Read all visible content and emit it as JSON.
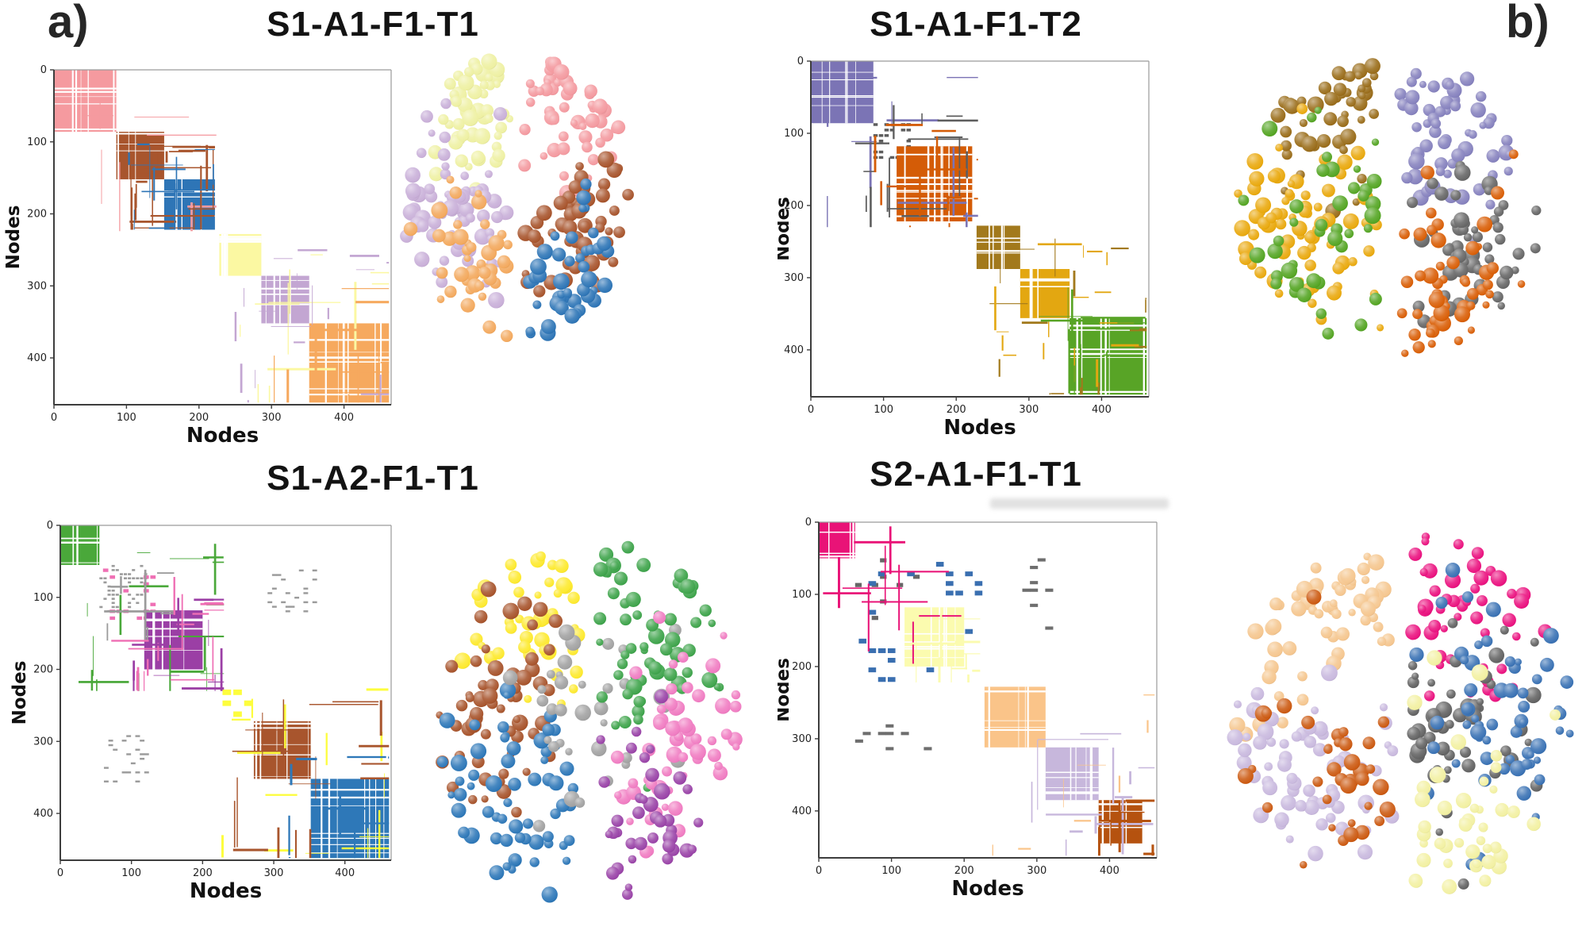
{
  "figure": {
    "labels": {
      "a": "a)",
      "b": "b)"
    }
  },
  "chart_data": [
    {
      "type": "heatmap",
      "title": "S1-A1-F1-T1",
      "matrix": {
        "type": "heatmap",
        "xlabel": "Nodes",
        "ylabel": "Nodes",
        "x_ticks": [
          0,
          100,
          200,
          300,
          400
        ],
        "y_ticks": [
          0,
          100,
          200,
          300,
          400
        ],
        "n_nodes": 465,
        "communities": [
          {
            "name": "pink",
            "color": "#f59a9f",
            "range": [
              0,
              86
            ],
            "style": "solid",
            "spread": [
              0,
              224
            ],
            "spread_n": 4
          },
          {
            "name": "brown",
            "color": "#a8552d",
            "range": [
              86,
              152
            ],
            "style": "solid",
            "spread": [
              55,
              222
            ],
            "spread_n": 12
          },
          {
            "name": "blue",
            "color": "#2e75b6",
            "range": [
              152,
              222
            ],
            "style": "solid",
            "spread": [
              100,
              222
            ],
            "spread_n": 8
          },
          {
            "name": "yellow",
            "color": "#fbf8a2",
            "range": [
              228,
              286
            ],
            "style": "solid",
            "spread": [
              228,
              462
            ],
            "spread_n": 8
          },
          {
            "name": "purple",
            "color": "#c3a6d2",
            "range": [
              286,
              352
            ],
            "style": "solid",
            "spread": [
              235,
              462
            ],
            "spread_n": 9
          },
          {
            "name": "orange",
            "color": "#f6a95e",
            "range": [
              352,
              462
            ],
            "style": "solid",
            "spread": [
              300,
              462
            ],
            "spread_n": 6
          }
        ],
        "remote_blocks": []
      },
      "brain": {
        "type": "scatter",
        "clusters": [
          {
            "name": "pale-yellow",
            "color": "#eef0a2",
            "hemi": "L",
            "center": [
              -0.4,
              -0.6
            ],
            "spread": 0.25,
            "count": 50
          },
          {
            "name": "pink",
            "color": "#f49aa0",
            "hemi": "R",
            "center": [
              0.4,
              -0.58
            ],
            "spread": 0.26,
            "count": 52
          },
          {
            "name": "lavender",
            "color": "#c9afd8",
            "hemi": "L",
            "center": [
              -0.52,
              0.1
            ],
            "spread": 0.3,
            "count": 68
          },
          {
            "name": "orange",
            "color": "#f3a95e",
            "hemi": "L",
            "center": [
              -0.22,
              0.42
            ],
            "spread": 0.26,
            "count": 40
          },
          {
            "name": "brown",
            "color": "#a8552d",
            "hemi": "R",
            "center": [
              0.45,
              0.18
            ],
            "spread": 0.27,
            "count": 55
          },
          {
            "name": "blue",
            "color": "#2e75b6",
            "hemi": "R",
            "center": [
              0.38,
              0.62
            ],
            "spread": 0.27,
            "count": 50
          }
        ]
      }
    },
    {
      "type": "heatmap",
      "title": "S1-A1-F1-T2",
      "matrix": {
        "type": "heatmap",
        "xlabel": "Nodes",
        "ylabel": "Nodes",
        "x_ticks": [
          0,
          100,
          200,
          300,
          400
        ],
        "y_ticks": [
          0,
          100,
          200,
          300,
          400
        ],
        "n_nodes": 465,
        "communities": [
          {
            "name": "slate-purple",
            "color": "#7b74b5",
            "range": [
              0,
              86
            ],
            "style": "solid",
            "spread": [
              0,
              230
            ],
            "spread_n": 6
          },
          {
            "name": "dark-gray",
            "color": "#5d5d5d",
            "range": [
              86,
              135
            ],
            "style": "sparse",
            "density": 0.35,
            "cell": 4,
            "spread": [
              60,
              230
            ],
            "spread_n": 8
          },
          {
            "name": "dark-orange",
            "color": "#d45c07",
            "range": [
              118,
              222
            ],
            "style": "solid",
            "spread": [
              86,
              230
            ],
            "spread_n": 7
          },
          {
            "name": "dark-gold",
            "color": "#a2791c",
            "range": [
              228,
              288
            ],
            "style": "solid",
            "spread": [
              228,
              462
            ],
            "spread_n": 9
          },
          {
            "name": "amber",
            "color": "#e3a711",
            "range": [
              288,
              356
            ],
            "style": "solid",
            "spread": [
              240,
              462
            ],
            "spread_n": 8
          },
          {
            "name": "green",
            "color": "#58a426",
            "range": [
              356,
              462
            ],
            "style": "solid",
            "spread": [
              310,
              462
            ],
            "spread_n": 6
          }
        ],
        "remote_blocks": []
      },
      "brain": {
        "type": "scatter",
        "clusters": [
          {
            "name": "dark-gold",
            "color": "#9a6d1b",
            "hemi": "L",
            "center": [
              -0.35,
              -0.62
            ],
            "spread": 0.26,
            "count": 48
          },
          {
            "name": "amber",
            "color": "#e9a90e",
            "hemi": "L",
            "center": [
              -0.55,
              0.08
            ],
            "spread": 0.3,
            "count": 75
          },
          {
            "name": "green",
            "color": "#55a524",
            "hemi": "L",
            "center": [
              -0.28,
              0.18
            ],
            "spread": 0.33,
            "count": 42
          },
          {
            "name": "slate-purple",
            "color": "#8682be",
            "hemi": "R",
            "center": [
              0.35,
              -0.45
            ],
            "spread": 0.3,
            "count": 62
          },
          {
            "name": "gray",
            "color": "#676767",
            "hemi": "R",
            "center": [
              0.55,
              0.28
            ],
            "spread": 0.28,
            "count": 52
          },
          {
            "name": "dark-orange",
            "color": "#d95f07",
            "hemi": "R",
            "center": [
              0.28,
              0.55
            ],
            "spread": 0.3,
            "count": 52
          }
        ]
      }
    },
    {
      "type": "heatmap",
      "title": "S1-A2-F1-T1",
      "matrix": {
        "type": "heatmap",
        "xlabel": "Nodes",
        "ylabel": "Nodes",
        "x_ticks": [
          0,
          100,
          200,
          300,
          400
        ],
        "y_ticks": [
          0,
          100,
          200,
          300,
          400
        ],
        "n_nodes": 465,
        "communities": [
          {
            "name": "green",
            "color": "#4aa83a",
            "range": [
              0,
              55
            ],
            "style": "solid",
            "spread": [
              0,
              230
            ],
            "spread_n": 10
          },
          {
            "name": "light-gray",
            "color": "#9b9b9b",
            "range": [
              55,
              118
            ],
            "style": "sparse",
            "density": 0.22,
            "cell": 3,
            "spread": [
              55,
              160
            ],
            "spread_n": 4
          },
          {
            "name": "pink",
            "color": "#ef6fb4",
            "range": [
              60,
              132
            ],
            "style": "sparse",
            "density": 0.3,
            "cell": 5,
            "spread": [
              60,
              230
            ],
            "spread_n": 8
          },
          {
            "name": "purple",
            "color": "#9b3fa5",
            "range": [
              118,
              200
            ],
            "style": "solid",
            "spread": [
              100,
              230
            ],
            "spread_n": 6
          },
          {
            "name": "yellow",
            "color": "#fdfd3d",
            "range": [
              228,
              272
            ],
            "style": "sparse",
            "density": 0.45,
            "cell": 8,
            "spread": [
              228,
              462
            ],
            "spread_n": 8
          },
          {
            "name": "brown",
            "color": "#a8552d",
            "range": [
              272,
              352
            ],
            "style": "solid",
            "spread": [
              240,
              462
            ],
            "spread_n": 9
          },
          {
            "name": "blue",
            "color": "#2e78b8",
            "range": [
              352,
              462
            ],
            "style": "solid",
            "spread": [
              310,
              462
            ],
            "spread_n": 5
          }
        ],
        "remote_blocks": [
          {
            "color": "#9b9b9b",
            "rows": [
              55,
              120
            ],
            "cols": [
              285,
              360
            ],
            "density": 0.18,
            "cell": 3
          }
        ]
      },
      "brain": {
        "type": "scatter",
        "clusters": [
          {
            "name": "yellow",
            "color": "#fde92e",
            "hemi": "L",
            "center": [
              -0.3,
              -0.58
            ],
            "spread": 0.25,
            "count": 48
          },
          {
            "name": "brown",
            "color": "#a8552d",
            "hemi": "L",
            "center": [
              -0.55,
              -0.08
            ],
            "spread": 0.28,
            "count": 58
          },
          {
            "name": "blue",
            "color": "#2e78b8",
            "hemi": "L",
            "center": [
              -0.35,
              0.5
            ],
            "spread": 0.3,
            "count": 62
          },
          {
            "name": "gray",
            "color": "#a2a2a2",
            "hemi": "C",
            "center": [
              0.02,
              -0.02
            ],
            "spread": 0.22,
            "count": 34
          },
          {
            "name": "green",
            "color": "#3fa44c",
            "hemi": "R",
            "center": [
              0.35,
              -0.48
            ],
            "spread": 0.28,
            "count": 62
          },
          {
            "name": "pink",
            "color": "#f07cc2",
            "hemi": "R",
            "center": [
              0.55,
              0.15
            ],
            "spread": 0.28,
            "count": 58
          },
          {
            "name": "purple",
            "color": "#9a44a8",
            "hemi": "R",
            "center": [
              0.3,
              0.62
            ],
            "spread": 0.26,
            "count": 38
          }
        ]
      }
    },
    {
      "type": "heatmap",
      "title": "S2-A1-F1-T1",
      "matrix": {
        "type": "heatmap",
        "xlabel": "Nodes",
        "ylabel": "Nodes",
        "x_ticks": [
          0,
          100,
          200,
          300,
          400
        ],
        "y_ticks": [
          0,
          100,
          200,
          300,
          400
        ],
        "n_nodes": 465,
        "communities": [
          {
            "name": "magenta",
            "color": "#e91377",
            "range": [
              0,
              50
            ],
            "style": "solid",
            "spread": [
              0,
              230
            ],
            "spread_n": 6
          },
          {
            "name": "dark-gray",
            "color": "#666666",
            "range": [
              50,
              150
            ],
            "style": "sparse",
            "density": 0.12,
            "cell": 6,
            "spread": [
              50,
              150
            ],
            "spread_n": 0
          },
          {
            "name": "blue",
            "color": "#3a6fb0",
            "range": [
              55,
              222
            ],
            "style": "sparse",
            "density": 0.15,
            "cell": 7,
            "spread": [
              55,
              222
            ],
            "spread_n": 0
          },
          {
            "name": "pale-yellow",
            "color": "#fbfbaf",
            "range": [
              118,
              200
            ],
            "style": "solid",
            "spread": [
              110,
              222
            ],
            "spread_n": 6
          },
          {
            "name": "peach",
            "color": "#fac489",
            "range": [
              228,
              312
            ],
            "style": "solid",
            "spread": [
              228,
              462
            ],
            "spread_n": 4
          },
          {
            "name": "lavender",
            "color": "#c7b7dc",
            "range": [
              312,
              385
            ],
            "style": "solid",
            "spread": [
              290,
              462
            ],
            "spread_n": 7
          },
          {
            "name": "dark-brown",
            "color": "#b5520f",
            "range": [
              385,
              445
            ],
            "style": "solid",
            "spread": [
              380,
              462
            ],
            "spread_n": 5
          }
        ],
        "remote_blocks": [
          {
            "color": "#6e6e6e",
            "rows": [
              50,
              150
            ],
            "cols": [
              280,
              312
            ],
            "density": 0.2,
            "cell": 5
          }
        ]
      },
      "brain": {
        "type": "scatter",
        "clusters": [
          {
            "name": "peach",
            "color": "#f5c68f",
            "hemi": "L",
            "center": [
              -0.4,
              -0.55
            ],
            "spread": 0.28,
            "count": 58
          },
          {
            "name": "lavender",
            "color": "#c9b9de",
            "hemi": "L",
            "center": [
              -0.5,
              0.28
            ],
            "spread": 0.3,
            "count": 70
          },
          {
            "name": "dark-orange",
            "color": "#cc5a12",
            "hemi": "L",
            "center": [
              -0.28,
              0.35
            ],
            "spread": 0.33,
            "count": 38
          },
          {
            "name": "magenta",
            "color": "#ea1380",
            "hemi": "R",
            "center": [
              0.3,
              -0.6
            ],
            "spread": 0.25,
            "count": 50
          },
          {
            "name": "dark-gray",
            "color": "#636363",
            "hemi": "R",
            "center": [
              0.18,
              0.05
            ],
            "spread": 0.28,
            "count": 52
          },
          {
            "name": "blue",
            "color": "#3a72b4",
            "hemi": "R",
            "center": [
              0.55,
              0.05
            ],
            "spread": 0.28,
            "count": 58
          },
          {
            "name": "pale-yellow",
            "color": "#f2f0a2",
            "hemi": "R",
            "center": [
              0.35,
              0.55
            ],
            "spread": 0.27,
            "count": 45
          }
        ]
      }
    }
  ]
}
